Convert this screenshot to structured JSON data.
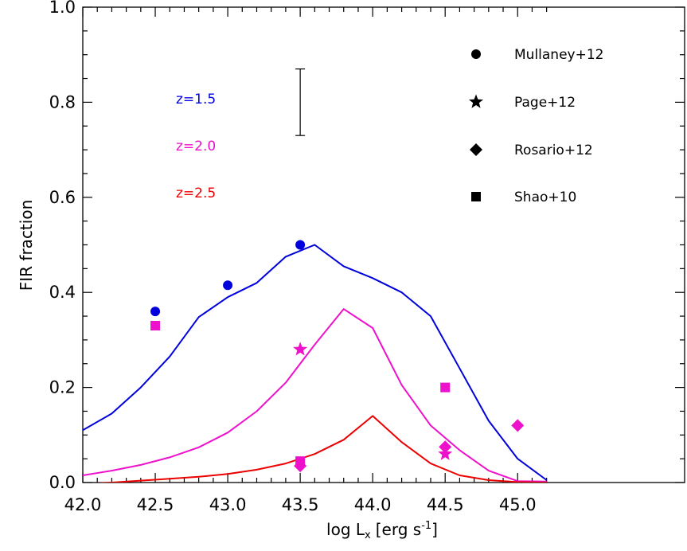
{
  "chart_data": {
    "type": "line",
    "xlabel": "log L",
    "xlabel_sub": "x",
    "xlabel_units": "[erg s",
    "xlabel_sup": "-1",
    "xlabel_close": "]",
    "ylabel": "FIR fraction",
    "xlim": [
      42.0,
      45.25
    ],
    "ylim": [
      0.0,
      1.0
    ],
    "xticks": [
      42.0,
      42.5,
      43.0,
      43.5,
      44.0,
      44.5,
      45.0
    ],
    "xtick_labels": [
      "42.0",
      "42.5",
      "43.0",
      "43.5",
      "44.0",
      "44.5",
      "45.0"
    ],
    "yticks": [
      0.0,
      0.2,
      0.4,
      0.6,
      0.8,
      1.0
    ],
    "ytick_labels": [
      "0.0",
      "0.2",
      "0.4",
      "0.6",
      "0.8",
      "1.0"
    ],
    "series": [
      {
        "name": "z=1.5",
        "color": "#0000dd",
        "x": [
          42.0,
          42.2,
          42.4,
          42.6,
          42.8,
          43.0,
          43.2,
          43.4,
          43.6,
          43.8,
          44.0,
          44.2,
          44.4,
          44.6,
          44.8,
          45.0,
          45.2
        ],
        "y": [
          0.11,
          0.145,
          0.2,
          0.265,
          0.348,
          0.39,
          0.42,
          0.475,
          0.5,
          0.455,
          0.43,
          0.4,
          0.35,
          0.24,
          0.13,
          0.05,
          0.005
        ]
      },
      {
        "name": "z=2.0",
        "color": "#ee11cc",
        "x": [
          42.0,
          42.2,
          42.4,
          42.6,
          42.8,
          43.0,
          43.2,
          43.4,
          43.6,
          43.8,
          44.0,
          44.2,
          44.4,
          44.6,
          44.8,
          45.0,
          45.2
        ],
        "y": [
          0.015,
          0.025,
          0.037,
          0.053,
          0.074,
          0.105,
          0.15,
          0.21,
          0.29,
          0.365,
          0.325,
          0.205,
          0.12,
          0.068,
          0.025,
          0.003,
          0.002
        ]
      },
      {
        "name": "z=2.5",
        "color": "#ee0000",
        "x": [
          42.0,
          42.2,
          42.4,
          42.6,
          42.8,
          43.0,
          43.2,
          43.4,
          43.6,
          43.8,
          44.0,
          44.2,
          44.4,
          44.6,
          44.8,
          45.0,
          45.2
        ],
        "y": [
          -0.003,
          0.0,
          0.004,
          0.008,
          0.012,
          0.018,
          0.027,
          0.04,
          0.06,
          0.09,
          0.14,
          0.085,
          0.04,
          0.015,
          0.005,
          0.001,
          0.0
        ]
      }
    ],
    "points": [
      {
        "source": "Mullaney+12",
        "marker": "circle",
        "color": "#0000dd",
        "x": 42.5,
        "y": 0.36
      },
      {
        "source": "Mullaney+12",
        "marker": "circle",
        "color": "#0000dd",
        "x": 43.0,
        "y": 0.415
      },
      {
        "source": "Mullaney+12",
        "marker": "circle",
        "color": "#0000dd",
        "x": 43.5,
        "y": 0.5
      },
      {
        "source": "Shao+10",
        "marker": "square",
        "color": "#ee11cc",
        "x": 42.5,
        "y": 0.33
      },
      {
        "source": "Shao+10",
        "marker": "square",
        "color": "#ee11cc",
        "x": 44.5,
        "y": 0.2
      },
      {
        "source": "Shao+10",
        "marker": "square",
        "color": "#ee11cc",
        "x": 43.5,
        "y": 0.045
      },
      {
        "source": "Page+12",
        "marker": "star",
        "color": "#ee11cc",
        "x": 43.5,
        "y": 0.28
      },
      {
        "source": "Page+12",
        "marker": "star",
        "color": "#ee11cc",
        "x": 44.5,
        "y": 0.06
      },
      {
        "source": "Rosario+12",
        "marker": "diamond",
        "color": "#ee11cc",
        "x": 43.5,
        "y": 0.035
      },
      {
        "source": "Rosario+12",
        "marker": "diamond",
        "color": "#ee11cc",
        "x": 44.5,
        "y": 0.075
      },
      {
        "source": "Rosario+12",
        "marker": "diamond",
        "color": "#ee11cc",
        "x": 45.0,
        "y": 0.12
      }
    ],
    "error_bar": {
      "x": 43.5,
      "y_low": 0.73,
      "y_high": 0.87
    },
    "legend": {
      "placement": "top-right",
      "entries": [
        {
          "marker": "circle",
          "label": "Mullaney+12"
        },
        {
          "marker": "star",
          "label": "Page+12"
        },
        {
          "marker": "diamond",
          "label": "Rosario+12"
        },
        {
          "marker": "square",
          "label": "Shao+10"
        }
      ]
    },
    "redshift_labels": [
      {
        "text": "z=1.5",
        "color": "#0000dd"
      },
      {
        "text": "z=2.0",
        "color": "#ee11cc"
      },
      {
        "text": "z=2.5",
        "color": "#ee0000"
      }
    ],
    "grid": false
  }
}
